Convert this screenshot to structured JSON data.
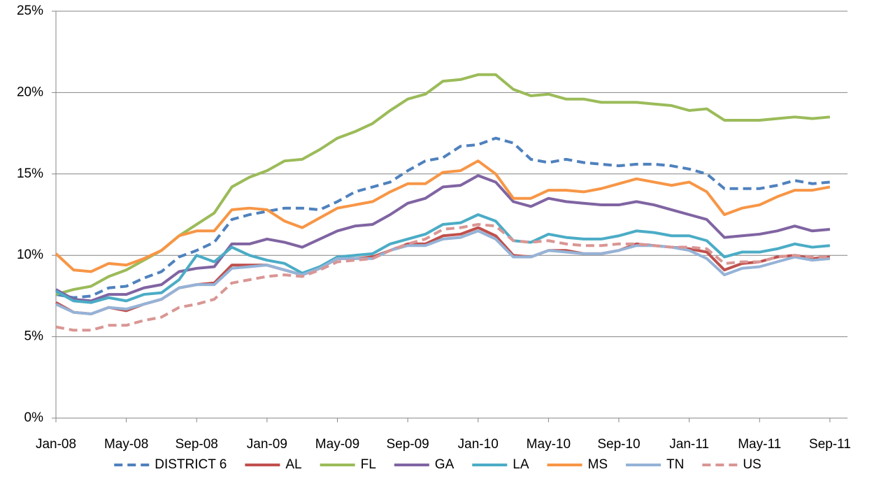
{
  "chart_data": {
    "type": "line",
    "categories": [
      "Jan-08",
      null,
      null,
      null,
      "May-08",
      null,
      null,
      null,
      "Sep-08",
      null,
      null,
      null,
      "Jan-09",
      null,
      null,
      null,
      "May-09",
      null,
      null,
      null,
      "Sep-09",
      null,
      null,
      null,
      "Jan-10",
      null,
      null,
      null,
      "May-10",
      null,
      null,
      null,
      "Sep-10",
      null,
      null,
      null,
      "Jan-11",
      null,
      null,
      null,
      "May-11",
      null,
      null,
      null,
      "Sep-11"
    ],
    "ylim": [
      0,
      25
    ],
    "yticks": [
      {
        "value": 0,
        "label": "0%"
      },
      {
        "value": 5,
        "label": "5%"
      },
      {
        "value": 10,
        "label": "10%"
      },
      {
        "value": 15,
        "label": "15%"
      },
      {
        "value": 20,
        "label": "20%"
      },
      {
        "value": 25,
        "label": "25%"
      }
    ],
    "grid": true,
    "legend": "bottom",
    "series": [
      {
        "name": "DISTRICT 6",
        "color": "#4f81bd",
        "dashed": true,
        "values": [
          7.6,
          7.4,
          7.5,
          8.0,
          8.1,
          8.6,
          9.0,
          9.9,
          10.3,
          10.8,
          12.2,
          12.5,
          12.7,
          12.9,
          12.9,
          12.8,
          13.3,
          13.9,
          14.2,
          14.5,
          15.2,
          15.8,
          16.0,
          16.7,
          16.8,
          17.2,
          16.9,
          15.9,
          15.7,
          15.9,
          15.7,
          15.6,
          15.5,
          15.6,
          15.6,
          15.5,
          15.3,
          15.0,
          14.1,
          14.1,
          14.1,
          14.3,
          14.6,
          14.4,
          14.5
        ]
      },
      {
        "name": "AL",
        "color": "#c0504d",
        "dashed": false,
        "values": [
          7.1,
          6.5,
          6.4,
          6.8,
          6.6,
          7.0,
          7.3,
          8.0,
          8.2,
          8.3,
          9.4,
          9.4,
          9.4,
          9.1,
          8.8,
          9.2,
          9.8,
          9.8,
          9.9,
          10.3,
          10.7,
          10.7,
          11.2,
          11.3,
          11.7,
          11.2,
          10.0,
          9.9,
          10.3,
          10.3,
          10.1,
          10.1,
          10.3,
          10.7,
          10.6,
          10.5,
          10.4,
          10.2,
          9.1,
          9.5,
          9.6,
          9.9,
          10.0,
          9.8,
          9.9
        ]
      },
      {
        "name": "FL",
        "color": "#9bbb59",
        "dashed": false,
        "values": [
          7.6,
          7.9,
          8.1,
          8.7,
          9.1,
          9.7,
          10.3,
          11.2,
          11.9,
          12.6,
          14.2,
          14.8,
          15.2,
          15.8,
          15.9,
          16.5,
          17.2,
          17.6,
          18.1,
          18.9,
          19.6,
          19.9,
          20.7,
          20.8,
          21.1,
          21.1,
          20.2,
          19.8,
          19.9,
          19.6,
          19.6,
          19.4,
          19.4,
          19.4,
          19.3,
          19.2,
          18.9,
          19.0,
          18.3,
          18.3,
          18.3,
          18.4,
          18.5,
          18.4,
          18.5
        ]
      },
      {
        "name": "GA",
        "color": "#8064a2",
        "dashed": false,
        "values": [
          7.9,
          7.3,
          7.2,
          7.6,
          7.6,
          8.0,
          8.2,
          9.0,
          9.2,
          9.3,
          10.7,
          10.7,
          11.0,
          10.8,
          10.5,
          11.0,
          11.5,
          11.8,
          11.9,
          12.5,
          13.2,
          13.5,
          14.2,
          14.3,
          14.9,
          14.5,
          13.3,
          13.0,
          13.5,
          13.3,
          13.2,
          13.1,
          13.1,
          13.3,
          13.1,
          12.8,
          12.5,
          12.2,
          11.1,
          11.2,
          11.3,
          11.5,
          11.8,
          11.5,
          11.6
        ]
      },
      {
        "name": "LA",
        "color": "#4bacc6",
        "dashed": false,
        "values": [
          7.8,
          7.2,
          7.1,
          7.4,
          7.2,
          7.6,
          7.7,
          8.5,
          10.0,
          9.6,
          10.5,
          10.0,
          9.7,
          9.5,
          8.9,
          9.3,
          9.9,
          10.0,
          10.1,
          10.7,
          11.0,
          11.3,
          11.9,
          12.0,
          12.5,
          12.1,
          10.9,
          10.8,
          11.3,
          11.1,
          11.0,
          11.0,
          11.2,
          11.5,
          11.4,
          11.2,
          11.2,
          10.9,
          9.9,
          10.2,
          10.2,
          10.4,
          10.7,
          10.5,
          10.6
        ]
      },
      {
        "name": "MS",
        "color": "#f79646",
        "dashed": false,
        "values": [
          10.1,
          9.1,
          9.0,
          9.5,
          9.4,
          9.8,
          10.3,
          11.2,
          11.5,
          11.5,
          12.8,
          12.9,
          12.8,
          12.1,
          11.7,
          12.3,
          12.9,
          13.1,
          13.3,
          13.9,
          14.4,
          14.4,
          15.1,
          15.2,
          15.8,
          15.0,
          13.5,
          13.5,
          14.0,
          14.0,
          13.9,
          14.1,
          14.4,
          14.7,
          14.5,
          14.3,
          14.5,
          13.9,
          12.5,
          12.9,
          13.1,
          13.6,
          14.0,
          14.0,
          14.2
        ]
      },
      {
        "name": "TN",
        "color": "#95b3d7",
        "dashed": false,
        "values": [
          7.0,
          6.5,
          6.4,
          6.8,
          6.7,
          7.0,
          7.3,
          8.0,
          8.2,
          8.2,
          9.2,
          9.3,
          9.4,
          9.1,
          8.8,
          9.2,
          9.8,
          9.8,
          9.8,
          10.3,
          10.6,
          10.6,
          11.0,
          11.1,
          11.5,
          11.0,
          9.9,
          9.9,
          10.3,
          10.2,
          10.1,
          10.1,
          10.3,
          10.6,
          10.6,
          10.5,
          10.3,
          9.8,
          8.8,
          9.2,
          9.3,
          9.6,
          9.9,
          9.7,
          9.8
        ]
      },
      {
        "name": "US",
        "color": "#d99694",
        "dashed": true,
        "values": [
          5.6,
          5.4,
          5.4,
          5.7,
          5.7,
          6.0,
          6.2,
          6.8,
          7.0,
          7.3,
          8.3,
          8.5,
          8.7,
          8.8,
          8.7,
          9.1,
          9.6,
          9.7,
          9.8,
          10.3,
          10.7,
          11.0,
          11.6,
          11.7,
          11.9,
          11.8,
          10.9,
          10.8,
          10.9,
          10.7,
          10.6,
          10.6,
          10.7,
          10.7,
          10.6,
          10.5,
          10.5,
          10.4,
          9.5,
          9.6,
          9.6,
          9.9,
          10.0,
          9.9,
          9.9
        ]
      }
    ]
  }
}
